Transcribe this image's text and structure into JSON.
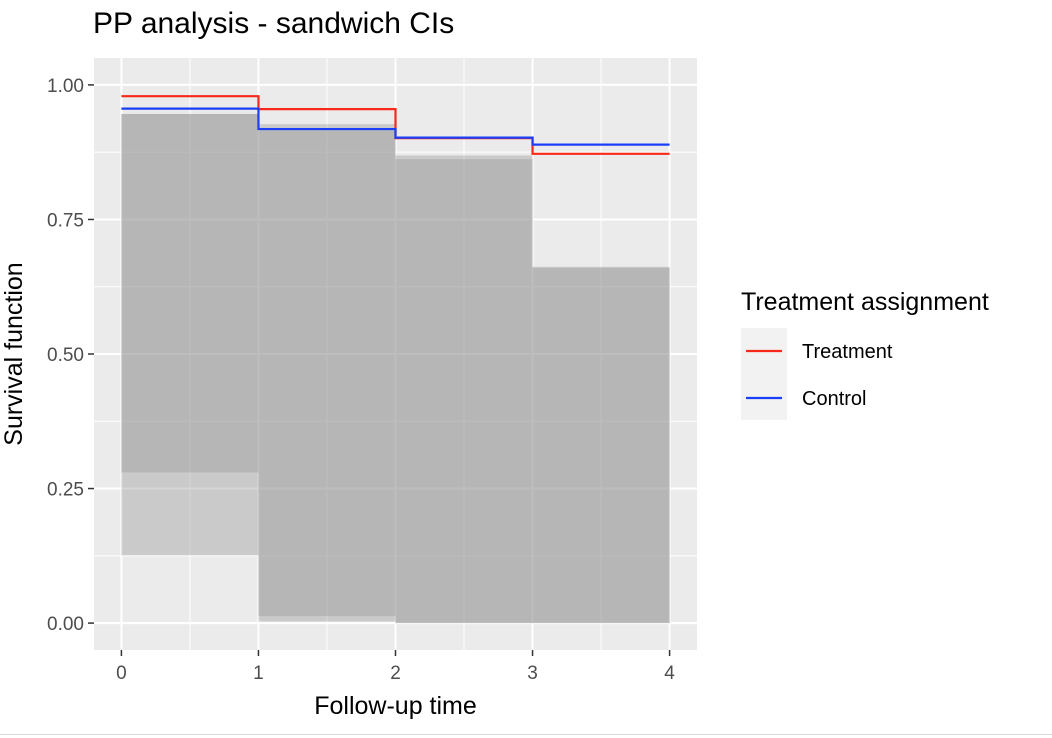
{
  "chart_data": {
    "type": "line",
    "title": "PP analysis - sandwich CIs",
    "xlabel": "Follow-up time",
    "ylabel": "Survival function",
    "xlim": [
      -0.2,
      4.2
    ],
    "ylim": [
      -0.05,
      1.05
    ],
    "x_ticks": [
      0,
      1,
      2,
      3,
      4
    ],
    "x_tick_labels": [
      "0",
      "1",
      "2",
      "3",
      "4"
    ],
    "y_ticks": [
      0,
      0.25,
      0.5,
      0.75,
      1.0
    ],
    "y_tick_labels": [
      "0.00",
      "0.25",
      "0.50",
      "0.75",
      "1.00"
    ],
    "x_minor_ticks": [
      0.5,
      1.5,
      2.5,
      3.5
    ],
    "y_minor_ticks": [
      0.125,
      0.375,
      0.625,
      0.875
    ],
    "grid": true,
    "step": true,
    "legend": {
      "title": "Treatment assignment",
      "position": "right"
    },
    "series": [
      {
        "name": "Treatment",
        "color": "#f8281a",
        "x": [
          0,
          1,
          2,
          3,
          4
        ],
        "values": [
          0.979,
          0.955,
          0.901,
          0.872,
          0.872
        ],
        "ci_lower": [
          0.126,
          0.003,
          0.0,
          0.0
        ],
        "ci_upper": [
          0.946,
          0.917,
          0.869,
          0.66
        ]
      },
      {
        "name": "Control",
        "color": "#1b3ef7",
        "x": [
          0,
          1,
          2,
          3,
          4
        ],
        "values": [
          0.956,
          0.918,
          0.902,
          0.889,
          0.889
        ],
        "ci_lower": [
          0.28,
          0.013,
          0.0,
          0.0
        ],
        "ci_upper": [
          0.946,
          0.927,
          0.862,
          0.662
        ]
      }
    ]
  }
}
